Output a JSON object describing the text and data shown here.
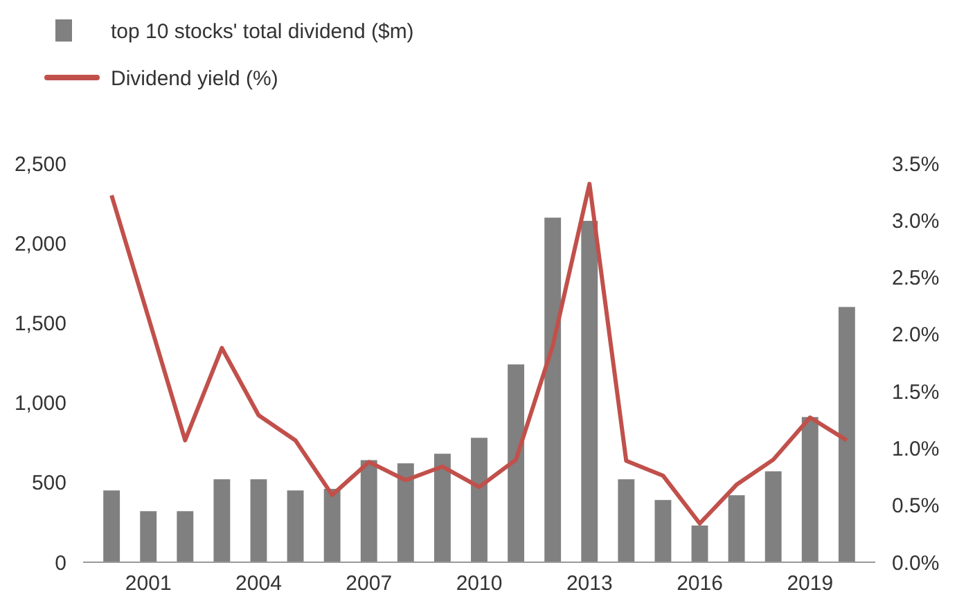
{
  "chart_data": {
    "type": "bar",
    "categories": [
      null,
      "2001",
      null,
      null,
      "2004",
      null,
      null,
      "2007",
      null,
      null,
      "2010",
      null,
      null,
      "2013",
      null,
      null,
      "2016",
      null,
      null,
      "2019",
      null
    ],
    "series": [
      {
        "name": "top 10 stocks' total dividend ($m)",
        "color": "#808080",
        "values": [
          450,
          320,
          320,
          520,
          520,
          450,
          460,
          640,
          620,
          680,
          780,
          1240,
          2160,
          2140,
          520,
          390,
          230,
          420,
          570,
          910,
          1600
        ]
      },
      {
        "name": "Dividend yield (%)",
        "type": "line",
        "axis": "y2",
        "color": "#c1504b",
        "values": [
          3.22,
          2.15,
          1.07,
          1.88,
          1.29,
          1.07,
          0.59,
          0.88,
          0.72,
          0.84,
          0.66,
          0.9,
          1.9,
          3.32,
          0.89,
          0.76,
          0.34,
          0.68,
          0.9,
          1.27,
          1.07
        ]
      }
    ],
    "ylim": [
      0,
      2500
    ],
    "yticks": [
      {
        "value": 0,
        "label": "0"
      },
      {
        "value": 500,
        "label": "500"
      },
      {
        "value": 1000,
        "label": "1,000"
      },
      {
        "value": 1500,
        "label": "1,500"
      },
      {
        "value": 2000,
        "label": "2,000"
      },
      {
        "value": 2500,
        "label": "2,500"
      }
    ],
    "y2lim": [
      0,
      3.5
    ],
    "y2ticks": [
      {
        "value": 0,
        "label": "0.0%"
      },
      {
        "value": 0.5,
        "label": "0.5%"
      },
      {
        "value": 1,
        "label": "1.0%"
      },
      {
        "value": 1.5,
        "label": "1.5%"
      },
      {
        "value": 2,
        "label": "2.0%"
      },
      {
        "value": 2.5,
        "label": "2.5%"
      },
      {
        "value": 3,
        "label": "3.0%"
      },
      {
        "value": 3.5,
        "label": "3.5%"
      }
    ],
    "legend": "top left",
    "grid": false,
    "marker": "none",
    "line_style": "solid"
  }
}
